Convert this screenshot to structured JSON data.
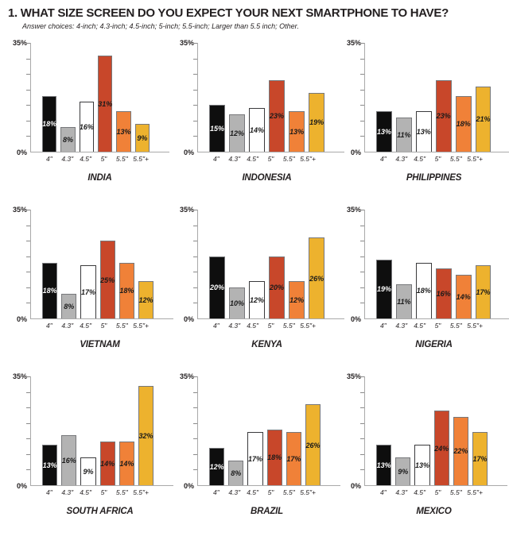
{
  "header": {
    "title": "1. WHAT SIZE SCREEN DO YOU EXPECT YOUR NEXT SMARTPHONE TO HAVE?",
    "subtitle": "Answer choices: 4-inch; 4.3-inch; 4.5-inch; 5-inch; 5.5-inch; Larger than 5.5 inch; Other."
  },
  "axis": {
    "ylim": [
      0,
      35
    ],
    "ymax_label": "35%",
    "ymin_label": "0%",
    "tick_step": 5,
    "grid": false
  },
  "style": {
    "bar_colors": [
      "#0e0e0e",
      "#b3b3b3",
      "#ffffff",
      "#c8472a",
      "#f08138",
      "#edb22e"
    ],
    "bar_label_colors": [
      "#ffffff",
      "#1a1a1a",
      "#1a1a1a",
      "#1a1a1a",
      "#1a1a1a",
      "#1a1a1a"
    ]
  },
  "chart_data": [
    {
      "type": "bar",
      "title": "INDIA",
      "categories": [
        "4\"",
        "4.3\"",
        "4.5\"",
        "5\"",
        "5.5\"",
        "5.5\"+"
      ],
      "values": [
        18,
        8,
        16,
        31,
        13,
        9
      ],
      "ylim": [
        0,
        35
      ]
    },
    {
      "type": "bar",
      "title": "INDONESIA",
      "categories": [
        "4\"",
        "4.3\"",
        "4.5\"",
        "5\"",
        "5.5\"",
        "5.5\"+"
      ],
      "values": [
        15,
        12,
        14,
        23,
        13,
        19
      ],
      "ylim": [
        0,
        35
      ]
    },
    {
      "type": "bar",
      "title": "PHILIPPINES",
      "categories": [
        "4\"",
        "4.3\"",
        "4.5\"",
        "5\"",
        "5.5\"",
        "5.5\"+"
      ],
      "values": [
        13,
        11,
        13,
        23,
        18,
        21
      ],
      "ylim": [
        0,
        35
      ]
    },
    {
      "type": "bar",
      "title": "VIETNAM",
      "categories": [
        "4\"",
        "4.3\"",
        "4.5\"",
        "5\"",
        "5.5\"",
        "5.5\"+"
      ],
      "values": [
        18,
        8,
        17,
        25,
        18,
        12
      ],
      "ylim": [
        0,
        35
      ]
    },
    {
      "type": "bar",
      "title": "KENYA",
      "categories": [
        "4\"",
        "4.3\"",
        "4.5\"",
        "5\"",
        "5.5\"",
        "5.5\"+"
      ],
      "values": [
        20,
        10,
        12,
        20,
        12,
        26
      ],
      "ylim": [
        0,
        35
      ]
    },
    {
      "type": "bar",
      "title": "NIGERIA",
      "categories": [
        "4\"",
        "4.3\"",
        "4.5\"",
        "5\"",
        "5.5\"",
        "5.5\"+"
      ],
      "values": [
        19,
        11,
        18,
        16,
        14,
        17
      ],
      "ylim": [
        0,
        35
      ]
    },
    {
      "type": "bar",
      "title": "SOUTH AFRICA",
      "categories": [
        "4\"",
        "4.3\"",
        "4.5\"",
        "5\"",
        "5.5\"",
        "5.5\"+"
      ],
      "values": [
        13,
        16,
        9,
        14,
        14,
        32
      ],
      "ylim": [
        0,
        35
      ]
    },
    {
      "type": "bar",
      "title": "BRAZIL",
      "categories": [
        "4\"",
        "4.3\"",
        "4.5\"",
        "5\"",
        "5.5\"",
        "5.5\"+"
      ],
      "values": [
        12,
        8,
        17,
        18,
        17,
        26
      ],
      "ylim": [
        0,
        35
      ]
    },
    {
      "type": "bar",
      "title": "MEXICO",
      "categories": [
        "4\"",
        "4.3\"",
        "4.5\"",
        "5\"",
        "5.5\"",
        "5.5\"+"
      ],
      "values": [
        13,
        9,
        13,
        24,
        22,
        17
      ],
      "ylim": [
        0,
        35
      ]
    }
  ]
}
